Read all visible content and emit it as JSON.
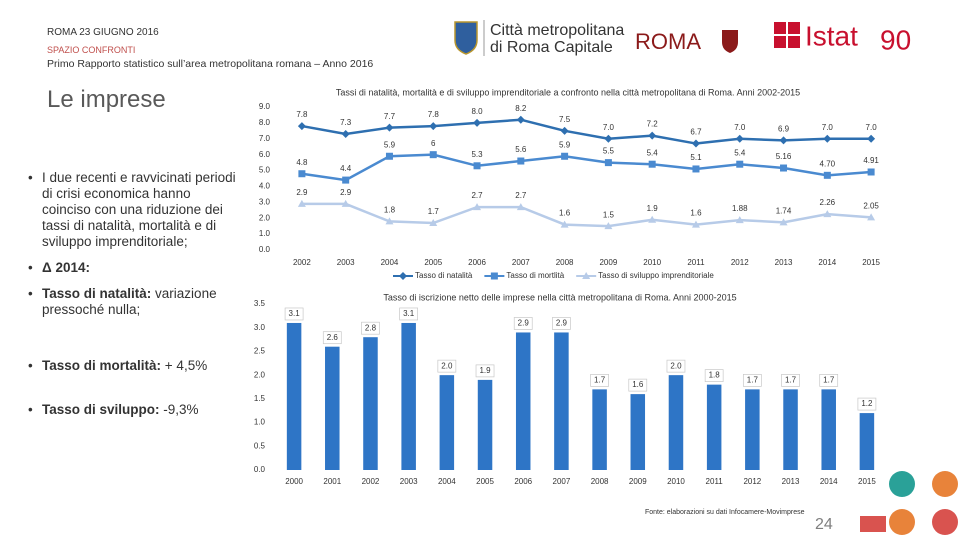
{
  "header": {
    "date": "ROMA 23 GIUGNO 2016",
    "section": "SPAZIO CONFRONTI",
    "subtitle": "Primo Rapporto statistico sull’area metropolitana romana – Anno 2016"
  },
  "logos": {
    "city_1": "Città metropolitana",
    "city_2": "di Roma Capitale",
    "roma": "ROMA",
    "istat": "Istat",
    "istat_years": "90"
  },
  "heading": "Le imprese",
  "bullets": [
    {
      "text": "I due recenti e ravvicinati periodi di crisi economica hanno coinciso con una riduzione dei tassi di natalità, mortalità e di sviluppo imprenditoriale;"
    },
    {
      "bold": "Δ 2014:"
    },
    {
      "bold": "Tasso di natalità:",
      "text": "variazione pressoché nulla;"
    },
    {
      "bold": "Tasso di mortalità:",
      "text": "+ 4,5%"
    },
    {
      "bold": "Tasso di sviluppo:",
      "text": "-9,3%"
    }
  ],
  "footer": {
    "source": "Fonte: elaborazioni su dati Infocamere-Movimprese",
    "page": "24"
  },
  "chart_data": [
    {
      "type": "line",
      "title": "Tassi di natalità, mortalità e di sviluppo imprenditoriale a confronto nella città metropolitana di Roma. Anni 2002-2015",
      "categories": [
        "2002",
        "2003",
        "2004",
        "2005",
        "2006",
        "2007",
        "2008",
        "2009",
        "2010",
        "2011",
        "2012",
        "2013",
        "2014",
        "2015"
      ],
      "series": [
        {
          "name": "Tasso di natalità",
          "color": "#2e6fb0",
          "marker": "diamond",
          "values": [
            7.8,
            7.3,
            7.7,
            7.8,
            8.0,
            8.2,
            7.5,
            7.0,
            7.2,
            6.7,
            7.0,
            6.9,
            7.0,
            7.0
          ],
          "value_labels": [
            "7.8",
            "7.3",
            "7.7",
            "7.8",
            "8.0",
            "8.2",
            "7.5",
            "7.0",
            "7.2",
            "6.7",
            "7.0",
            "6.9",
            "7.0",
            "7.0"
          ]
        },
        {
          "name": "Tasso di mortlità",
          "color": "#4a8ad0",
          "marker": "square",
          "values": [
            4.8,
            4.4,
            5.9,
            6,
            5.3,
            5.6,
            5.9,
            5.5,
            5.4,
            5.1,
            5.4,
            5.16,
            4.7,
            4.91
          ],
          "value_labels": [
            "4.8",
            "4.4",
            "5.9",
            "6",
            "5.3",
            "5.6",
            "5.9",
            "5.5",
            "5.4",
            "5.1",
            "5.4",
            "5.16",
            "4.70",
            "4.91"
          ]
        },
        {
          "name": "Tasso di sviluppo imprenditoriale",
          "color": "#b7cbe8",
          "marker": "triangle",
          "values": [
            2.9,
            2.9,
            1.8,
            1.7,
            2.7,
            2.7,
            1.6,
            1.5,
            1.9,
            1.6,
            1.88,
            1.74,
            2.26,
            2.05
          ],
          "value_labels": [
            "2.9",
            "2.9",
            "1.8",
            "1.7",
            "2.7",
            "2.7",
            "1.6",
            "1.5",
            "1.9",
            "1.6",
            "1.88",
            "1.74",
            "2.26",
            "2.05"
          ]
        }
      ],
      "ylim": [
        0,
        9
      ],
      "yticks": [
        {
          "value": 0,
          "label": "0.0"
        },
        {
          "value": 1,
          "label": "1.0"
        },
        {
          "value": 2,
          "label": "2.0"
        },
        {
          "value": 3,
          "label": "3.0"
        },
        {
          "value": 4,
          "label": "4.0"
        },
        {
          "value": 5,
          "label": "5.0"
        },
        {
          "value": 6,
          "label": "6.0"
        },
        {
          "value": 7,
          "label": "7.0"
        },
        {
          "value": 8,
          "label": "8.0"
        },
        {
          "value": 9,
          "label": "9.0"
        }
      ],
      "grid": false,
      "legend": "bottom"
    },
    {
      "type": "bar",
      "title": "Tasso di iscrizione netto delle imprese nella città metropolitana di Roma. Anni 2000-2015",
      "categories": [
        "2000",
        "2001",
        "2002",
        "2003",
        "2004",
        "2005",
        "2006",
        "2007",
        "2008",
        "2009",
        "2010",
        "2011",
        "2012",
        "2013",
        "2014",
        "2015"
      ],
      "values": [
        3.1,
        2.6,
        2.8,
        3.1,
        2.0,
        1.9,
        2.9,
        2.9,
        1.7,
        1.6,
        2.0,
        1.8,
        1.7,
        1.7,
        1.7,
        1.2
      ],
      "value_labels": [
        "3.1",
        "2.6",
        "2.8",
        "3.1",
        "2.0",
        "1.9",
        "2.9",
        "2.9",
        "1.7",
        "1.6",
        "2.0",
        "1.8",
        "1.7",
        "1.7",
        "1.7",
        "1.2"
      ],
      "color": "#2e75c6",
      "ylim": [
        0,
        3.5
      ],
      "yticks": [
        {
          "value": 0,
          "label": "0.0"
        },
        {
          "value": 0.5,
          "label": "0.5"
        },
        {
          "value": 1,
          "label": "1.0"
        },
        {
          "value": 1.5,
          "label": "1.5"
        },
        {
          "value": 2,
          "label": "2.0"
        },
        {
          "value": 2.5,
          "label": "2.5"
        },
        {
          "value": 3,
          "label": "3.0"
        },
        {
          "value": 3.5,
          "label": "3.5"
        }
      ],
      "grid": false
    }
  ]
}
